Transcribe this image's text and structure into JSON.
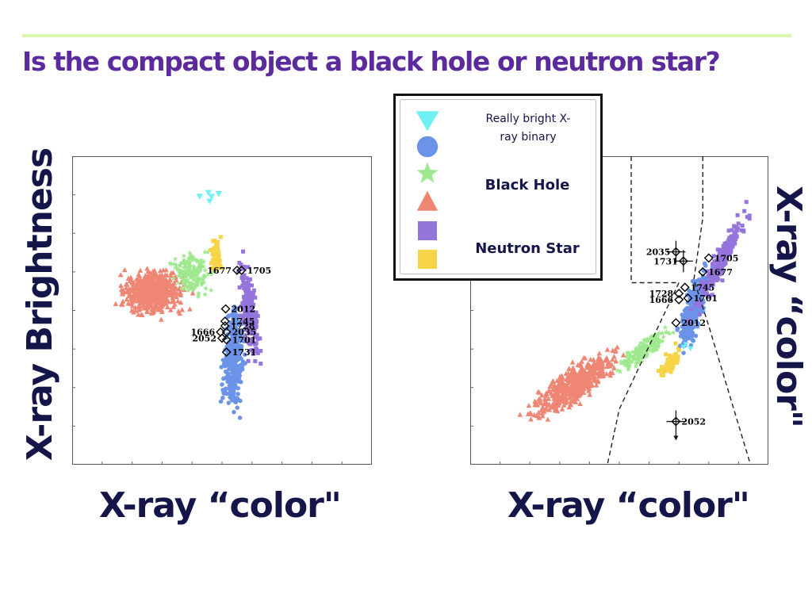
{
  "slide": {
    "title": "Is the compact object a black hole or neutron star?",
    "left_axis_caption": "X-ray Brightness",
    "bottom_axis_caption_left": "X-ray “color\"",
    "bottom_axis_caption_right": "X-ray “color\"",
    "right_axis_caption": "X-ray “color\""
  },
  "legend": {
    "entries": [
      {
        "marker": "triangle-down",
        "color": "#6ef0f5"
      },
      {
        "marker": "circle",
        "color": "#6b93e8"
      },
      {
        "marker": "star",
        "color": "#9ee88e"
      },
      {
        "marker": "triangle-up",
        "color": "#ef8674"
      },
      {
        "marker": "square",
        "color": "#9575dc"
      },
      {
        "marker": "square",
        "color": "#f5d547"
      }
    ],
    "label_bright_line1": "Really bright X-",
    "label_bright_line2": "ray binary",
    "label_black_hole": "Black Hole",
    "label_neutron_star": "Neutron Star"
  },
  "colors": {
    "bright": "#6ef0f5",
    "circle": "#6b93e8",
    "star": "#9ee88e",
    "triangle": "#ef8674",
    "purple": "#9575dc",
    "yellow": "#f5d547",
    "caption": "#14164a",
    "title": "#5b2a9c"
  },
  "chart_data": [
    {
      "type": "scatter",
      "title": "",
      "xlabel": "X-ray “color\"",
      "ylabel": "X-ray Brightness",
      "xlim": [
        0,
        100
      ],
      "ylim": [
        0,
        100
      ],
      "tick_labels_visible": false,
      "sources": [
        {
          "name": "1677",
          "x": 55.0,
          "y": 63.0,
          "label_side": "left"
        },
        {
          "name": "1705",
          "x": 56.5,
          "y": 63.0,
          "label_side": "right"
        },
        {
          "name": "2012",
          "x": 51.2,
          "y": 50.5,
          "label_side": "right"
        },
        {
          "name": "1745",
          "x": 51.0,
          "y": 46.5,
          "label_side": "right"
        },
        {
          "name": "1728",
          "x": 51.0,
          "y": 45.0,
          "label_side": "right"
        },
        {
          "name": "1666",
          "x": 49.5,
          "y": 43.0,
          "label_side": "left"
        },
        {
          "name": "2035",
          "x": 51.5,
          "y": 43.0,
          "label_side": "right"
        },
        {
          "name": "2052",
          "x": 50.0,
          "y": 41.0,
          "label_side": "left"
        },
        {
          "name": "1701",
          "x": 51.5,
          "y": 40.5,
          "label_side": "right"
        },
        {
          "name": "1731",
          "x": 51.5,
          "y": 36.5,
          "label_side": "right"
        }
      ],
      "groups": [
        {
          "marker": "triangle-up",
          "color": "#ef8674",
          "count": 520,
          "region": "x 10-48, y 37-70"
        },
        {
          "marker": "star",
          "color": "#9ee88e",
          "count": 170,
          "region": "x 25-52, y 40-75"
        },
        {
          "marker": "square",
          "color": "#f5d547",
          "count": 60,
          "region": "x 44-52, y 55-78"
        },
        {
          "marker": "circle",
          "color": "#6b93e8",
          "count": 330,
          "region": "x 45-60, y 6-75"
        },
        {
          "marker": "square",
          "color": "#9575dc",
          "count": 200,
          "region": "x 52-65, y 18-75"
        },
        {
          "marker": "triangle-down",
          "color": "#6ef0f5",
          "count": 5,
          "region": "x 40-53, y 82-96"
        }
      ]
    },
    {
      "type": "scatter",
      "title": "",
      "xlabel": "X-ray “color\"",
      "ylabel": "X-ray “color\"",
      "xlim": [
        0,
        100
      ],
      "ylim": [
        0,
        100
      ],
      "tick_labels_visible": false,
      "sources": [
        {
          "name": "2035",
          "x": 69.0,
          "y": 69.0,
          "label_side": "left",
          "error_bar": true
        },
        {
          "name": "1705",
          "x": 80.0,
          "y": 67.0,
          "label_side": "right"
        },
        {
          "name": "1731",
          "x": 71.5,
          "y": 66.0,
          "label_side": "left",
          "error_bar": true
        },
        {
          "name": "1677",
          "x": 78.0,
          "y": 62.5,
          "label_side": "right"
        },
        {
          "name": "1745",
          "x": 72.0,
          "y": 57.5,
          "label_side": "right"
        },
        {
          "name": "1728",
          "x": 70.0,
          "y": 55.5,
          "label_side": "left"
        },
        {
          "name": "1666",
          "x": 70.0,
          "y": 53.5,
          "label_side": "left"
        },
        {
          "name": "1701",
          "x": 73.0,
          "y": 54.0,
          "label_side": "right"
        },
        {
          "name": "2012",
          "x": 69.0,
          "y": 46.0,
          "label_side": "right"
        },
        {
          "name": "2052",
          "x": 69.0,
          "y": 14.0,
          "label_side": "right",
          "error_bar": true,
          "upper_limit": true
        }
      ],
      "groups": [
        {
          "marker": "triangle-up",
          "color": "#ef8674",
          "count": 520,
          "region": "x 15-55, y 10-50"
        },
        {
          "marker": "star",
          "color": "#9ee88e",
          "count": 170,
          "region": "x 45-70, y 25-50"
        },
        {
          "marker": "square",
          "color": "#f5d547",
          "count": 60,
          "region": "x 60-75, y 25-42"
        },
        {
          "marker": "circle",
          "color": "#6b93e8",
          "count": 300,
          "region": "x 65-85, y 20-75"
        },
        {
          "marker": "square",
          "color": "#9575dc",
          "count": 200,
          "region": "x 72-95, y 45-95"
        },
        {
          "marker": "triangle-down",
          "color": "#6ef0f5",
          "count": 3,
          "region": "x 55-80, y 35-42"
        }
      ],
      "boundary_lines": [
        {
          "style": "dashed",
          "points": [
            [
              54,
              100
            ],
            [
              54,
              59
            ],
            [
              70,
              59
            ]
          ]
        },
        {
          "style": "dashed",
          "points": [
            [
              70,
              59
            ],
            [
              50,
              18
            ],
            [
              46,
              0
            ]
          ]
        },
        {
          "style": "dashed",
          "points": [
            [
              78,
              100
            ],
            [
              78,
              80
            ],
            [
              75,
              60
            ],
            [
              80,
              45
            ],
            [
              94,
              0
            ]
          ]
        }
      ]
    }
  ]
}
